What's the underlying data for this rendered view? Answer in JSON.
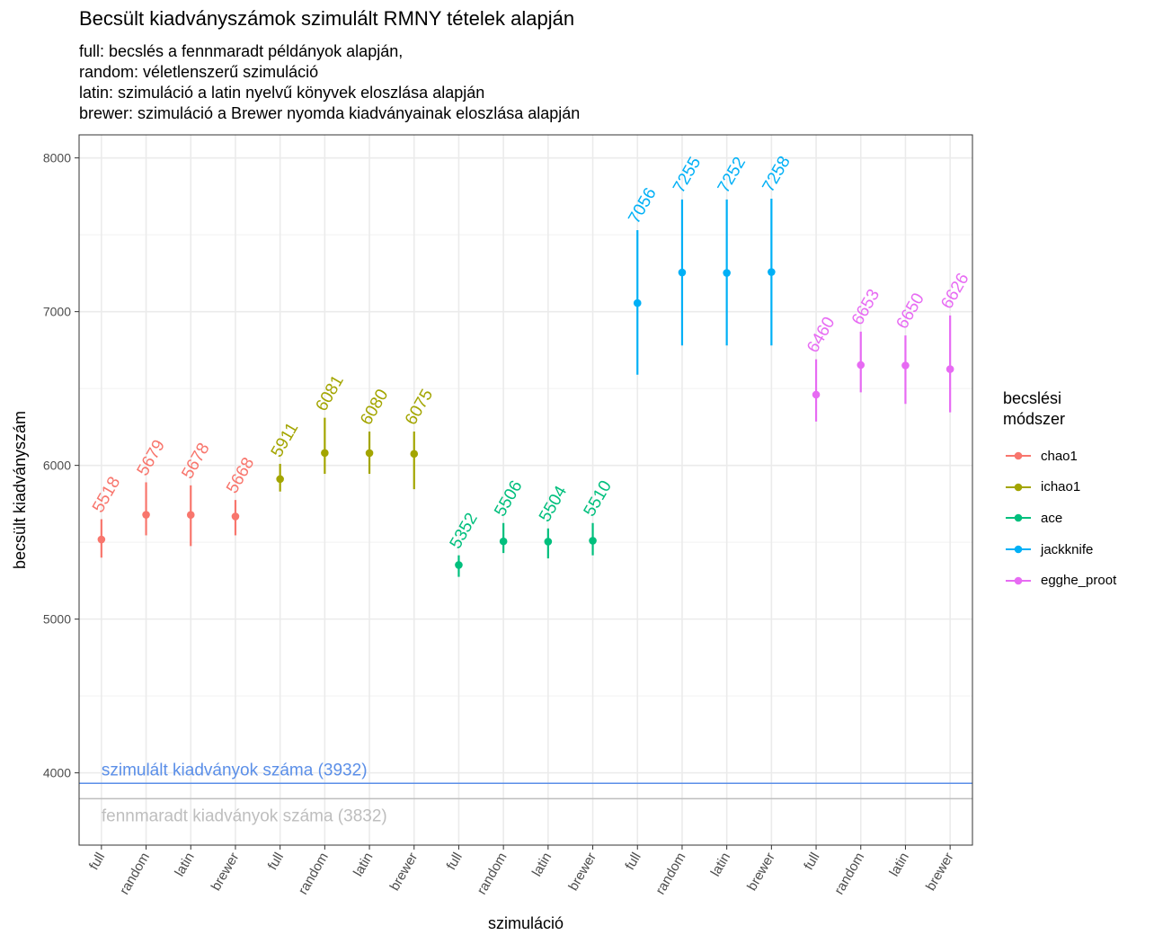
{
  "title": "Becsült kiadványszámok szimulált RMNY tételek alapján",
  "subtitle_lines": [
    "full: becslés a fennmaradt példányok alapján,",
    "random: véletlenszerű szimuláció",
    "latin: szimuláció a latin nyelvű könyvek eloszlása alapján",
    "brewer: szimuláció a Brewer nyomda kiadványainak eloszlása alapján"
  ],
  "legend": {
    "title_lines": [
      "becslési",
      "módszer"
    ]
  },
  "chart_data": {
    "type": "scatter",
    "subtype": "pointrange",
    "xlabel": "szimuláció",
    "ylabel": "becsült kiadványszám",
    "ylim": [
      3530,
      8150
    ],
    "y_ticks": [
      4000,
      5000,
      6000,
      7000,
      8000
    ],
    "x_tick_labels": [
      "full",
      "random",
      "latin",
      "brewer",
      "full",
      "random",
      "latin",
      "brewer",
      "full",
      "random",
      "latin",
      "brewer",
      "full",
      "random",
      "latin",
      "brewer",
      "full",
      "random",
      "latin",
      "brewer"
    ],
    "grid": true,
    "legend_position": "right",
    "series": [
      {
        "name": "chao1",
        "color": "#F8766D",
        "x": [
          "full",
          "random",
          "latin",
          "brewer"
        ],
        "values": [
          5518,
          5679,
          5678,
          5668
        ],
        "lower": [
          5400,
          5545,
          5475,
          5545
        ],
        "upper": [
          5650,
          5890,
          5870,
          5775
        ],
        "labels": [
          "5518",
          "5679",
          "5678",
          "5668"
        ]
      },
      {
        "name": "ichao1",
        "color": "#A3A500",
        "x": [
          "full",
          "random",
          "latin",
          "brewer"
        ],
        "values": [
          5911,
          6081,
          6080,
          6075
        ],
        "lower": [
          5830,
          5945,
          5945,
          5845
        ],
        "upper": [
          6010,
          6310,
          6220,
          6220
        ],
        "labels": [
          "5911",
          "6081",
          "6080",
          "6075"
        ]
      },
      {
        "name": "ace",
        "color": "#00BF7D",
        "x": [
          "full",
          "random",
          "latin",
          "brewer"
        ],
        "values": [
          5352,
          5506,
          5504,
          5510
        ],
        "lower": [
          5275,
          5430,
          5395,
          5415
        ],
        "upper": [
          5415,
          5625,
          5590,
          5625
        ],
        "labels": [
          "5352",
          "5506",
          "5504",
          "5510"
        ]
      },
      {
        "name": "jackknife",
        "color": "#00B0F6",
        "x": [
          "full",
          "random",
          "latin",
          "brewer"
        ],
        "values": [
          7056,
          7255,
          7252,
          7258
        ],
        "lower": [
          6590,
          6780,
          6780,
          6780
        ],
        "upper": [
          7530,
          7730,
          7730,
          7735
        ],
        "labels": [
          "7056",
          "7255",
          "7252",
          "7258"
        ]
      },
      {
        "name": "egghe_proot",
        "color": "#E76BF3",
        "x": [
          "full",
          "random",
          "latin",
          "brewer"
        ],
        "values": [
          6460,
          6653,
          6650,
          6626
        ],
        "lower": [
          6285,
          6475,
          6400,
          6345
        ],
        "upper": [
          6690,
          6870,
          6845,
          6975
        ],
        "labels": [
          "6460",
          "6653",
          "6650",
          "6626"
        ]
      }
    ],
    "hlines": [
      {
        "value": 3932,
        "label": "szimulált kiadványok száma (3932)",
        "color": "#5B8FE8"
      },
      {
        "value": 3832,
        "label": "fennmaradt kiadványok száma (3832)",
        "color": "#BEBEBE"
      }
    ]
  }
}
